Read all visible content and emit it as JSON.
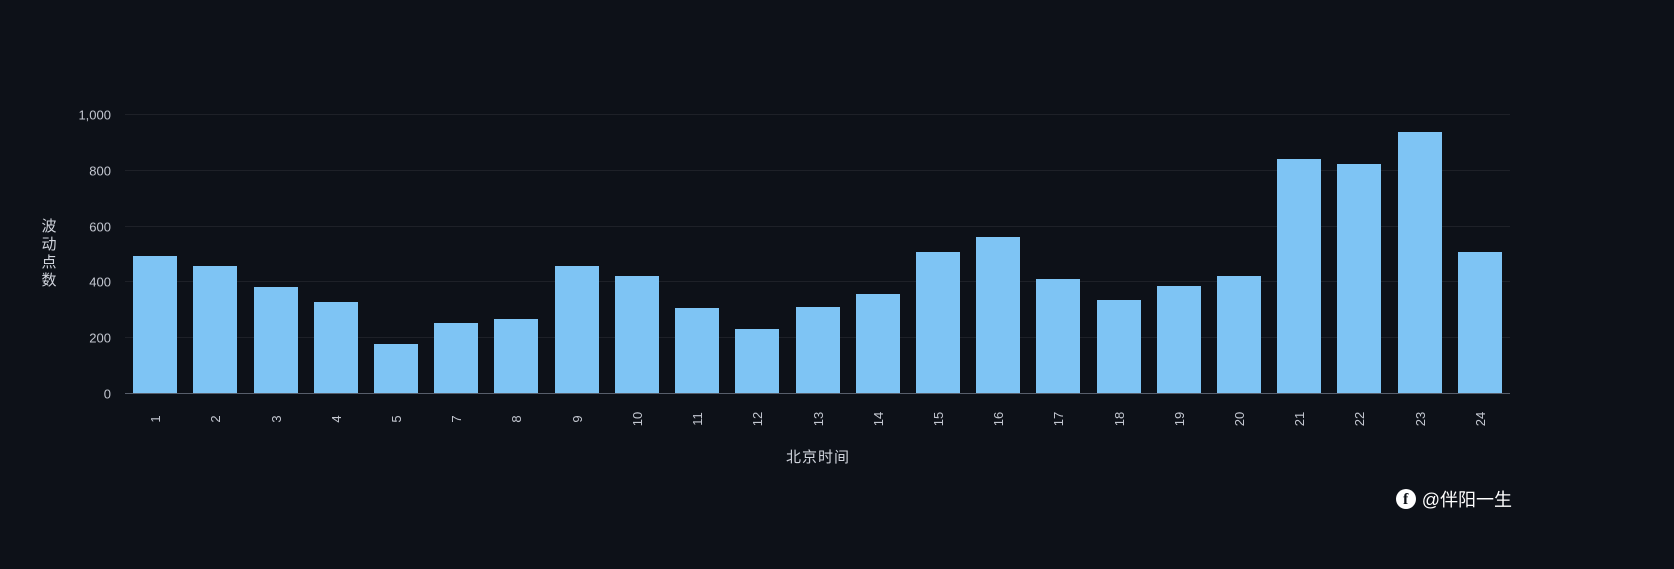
{
  "page": {
    "background": "#0d1118",
    "watermark": {
      "icon": "facebook-icon",
      "icon_glyph": "f",
      "handle": "@伴阳一生"
    }
  },
  "chart_data": {
    "type": "bar",
    "title": "",
    "xlabel": "北京时间",
    "ylabel": "波动点数",
    "categories": [
      "1",
      "2",
      "3",
      "4",
      "5",
      "7",
      "8",
      "9",
      "10",
      "11",
      "12",
      "13",
      "14",
      "15",
      "16",
      "17",
      "18",
      "19",
      "20",
      "21",
      "22",
      "23",
      "24"
    ],
    "values": [
      490,
      455,
      380,
      325,
      175,
      250,
      265,
      455,
      420,
      305,
      230,
      310,
      355,
      505,
      560,
      410,
      335,
      385,
      420,
      840,
      820,
      935,
      505
    ],
    "ylim": [
      0,
      1000
    ],
    "yticks": [
      0,
      200,
      400,
      600,
      800,
      1000
    ],
    "ytick_labels": [
      "0",
      "200",
      "400",
      "600",
      "800",
      "1,000"
    ],
    "xlabel_rotation_deg": 90,
    "grid": true,
    "legend_position": "none",
    "bar_color": "#7ec4f4",
    "grid_color": "rgba(255,255,255,0.07)",
    "axis_color": "#575e6b",
    "text_color": "#c3c7d0",
    "background_color": "#0d1118"
  }
}
